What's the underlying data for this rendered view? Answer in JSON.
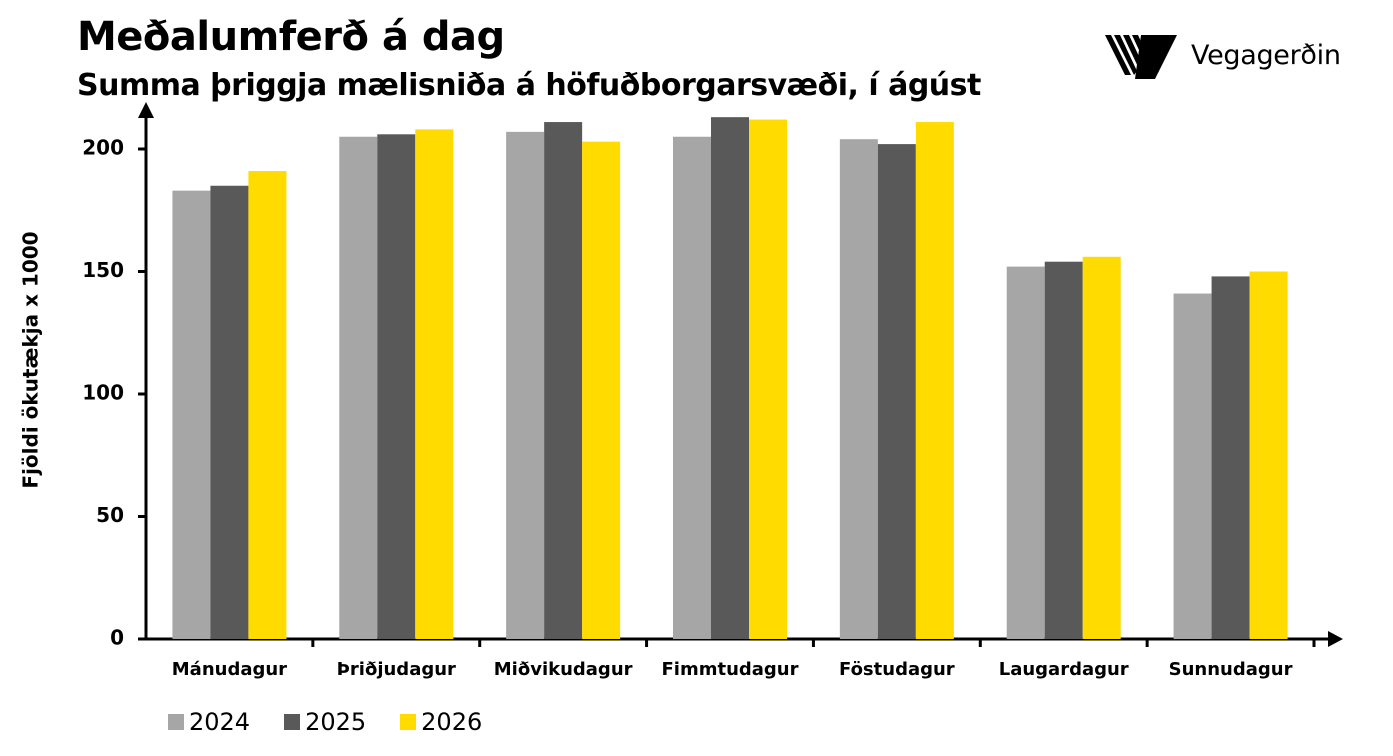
{
  "header": {
    "title": "Meðalumferð á dag",
    "subtitle": "Summa þriggja mælisniða á höfuðborgarsvæði, í ágúst"
  },
  "logo": {
    "text": "Vegagerðin",
    "icon": "vegagerdin-stripes-icon"
  },
  "colors": {
    "2024": "#a6a6a6",
    "2025": "#595959",
    "2026": "#ffdb00"
  },
  "chart_data": {
    "type": "bar",
    "title": "Meðalumferð á dag",
    "subtitle": "Summa þriggja mælisniða á höfuðborgarsvæði, í ágúst",
    "xlabel": "",
    "ylabel": "Fjöldi ökutækja x 1000",
    "ylim": [
      0,
      200
    ],
    "yticks": [
      0,
      50,
      100,
      150,
      200
    ],
    "grid": false,
    "legend": "bottom-left",
    "categories": [
      "Mánudagur",
      "Þriðjudagur",
      "Miðvikudagur",
      "Fimmtudagur",
      "Föstudagur",
      "Laugardagur",
      "Sunnudagur"
    ],
    "series": [
      {
        "name": "2024",
        "color": "#a6a6a6",
        "values": [
          183,
          205,
          207,
          205,
          204,
          152,
          141
        ]
      },
      {
        "name": "2025",
        "color": "#595959",
        "values": [
          185,
          206,
          211,
          213,
          202,
          154,
          148
        ]
      },
      {
        "name": "2026",
        "color": "#ffdb00",
        "values": [
          191,
          208,
          203,
          212,
          211,
          156,
          150
        ]
      }
    ]
  }
}
